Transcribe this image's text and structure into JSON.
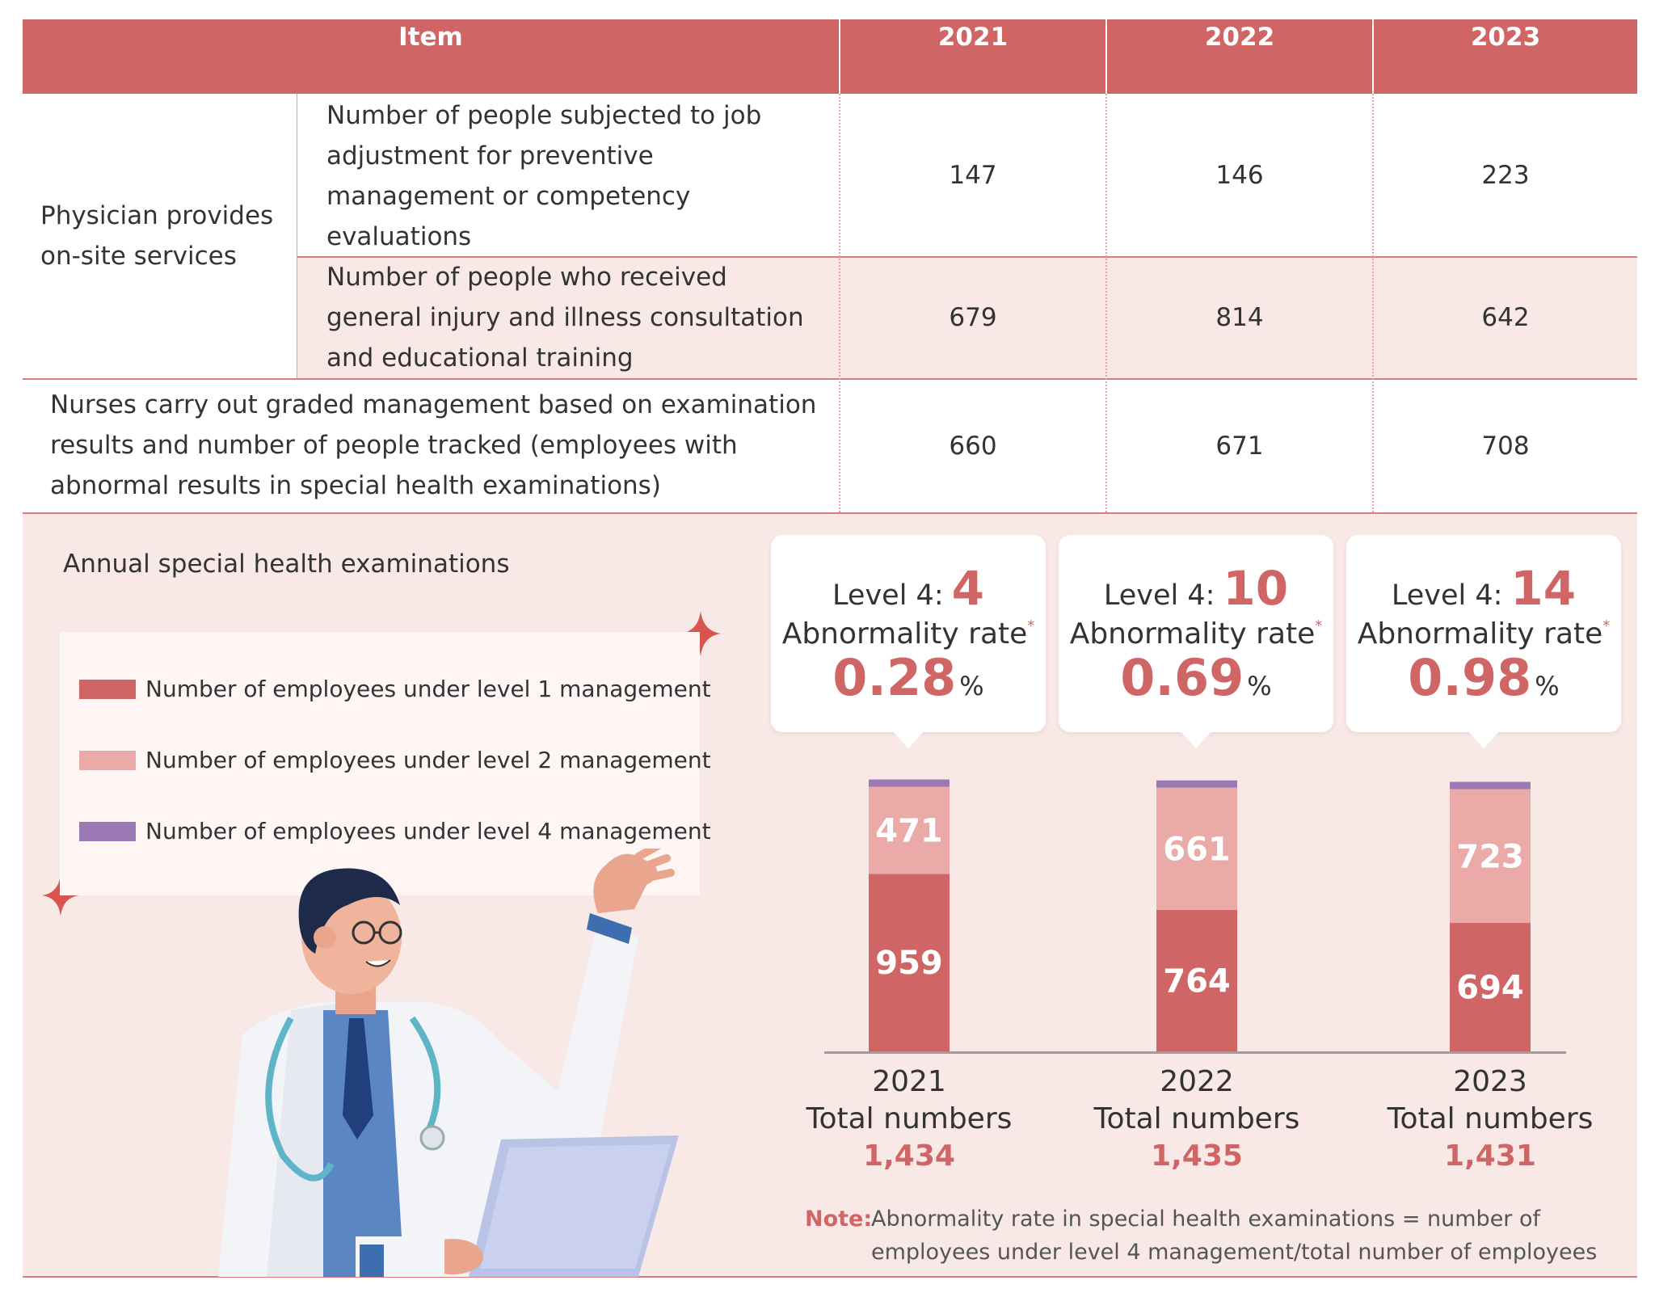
{
  "table": {
    "header": {
      "item": "Item",
      "years": [
        "2021",
        "2022",
        "2023"
      ]
    },
    "group_label": "Physician provides on-site services",
    "rows": [
      {
        "label": "Number of people subjected to job adjustment for preventive management or competency evaluations",
        "values": [
          "147",
          "146",
          "223"
        ]
      },
      {
        "label": "Number of people who received general injury and illness consultation and educational training",
        "values": [
          "679",
          "814",
          "642"
        ]
      },
      {
        "label": "Nurses carry out graded management based on examination results and number of people tracked (employees with abnormal results in special health examinations)",
        "values": [
          "660",
          "671",
          "708"
        ]
      }
    ]
  },
  "section": {
    "title": "Annual special health examinations",
    "legend": [
      {
        "label": "Number of employees under level 1 management",
        "color": "#cf6565"
      },
      {
        "label": "Number of employees under level 2 management",
        "color": "#eaaaa8"
      },
      {
        "label": "Number of employees under level 4 management",
        "color": "#9b7ab4"
      }
    ],
    "callouts": [
      {
        "level_label": "Level 4:",
        "level_value": "4",
        "rate_label": "Abnormality rate",
        "rate_asterisk": "*",
        "rate_value": "0.28",
        "rate_unit": "%"
      },
      {
        "level_label": "Level 4:",
        "level_value": "10",
        "rate_label": "Abnormality rate",
        "rate_asterisk": "*",
        "rate_value": "0.69",
        "rate_unit": "%"
      },
      {
        "level_label": "Level 4:",
        "level_value": "14",
        "rate_label": "Abnormality rate",
        "rate_asterisk": "*",
        "rate_value": "0.98",
        "rate_unit": "%"
      }
    ],
    "totals_label": "Total numbers",
    "totals": [
      "1,434",
      "1,435",
      "1,431"
    ],
    "note_key": "Note:",
    "note_text": "Abnormality rate in special health examinations = number of employees under level 4 management/total number of employees"
  },
  "chart_data": {
    "type": "bar",
    "stacked": true,
    "categories": [
      "2021",
      "2022",
      "2023"
    ],
    "series": [
      {
        "name": "Number of employees under level 1 management",
        "values": [
          959,
          764,
          694
        ],
        "color": "#cf6565"
      },
      {
        "name": "Number of employees under level 2 management",
        "values": [
          471,
          661,
          723
        ],
        "color": "#eaaaa8"
      },
      {
        "name": "Number of employees under level 4 management",
        "values": [
          4,
          10,
          14
        ],
        "color": "#9b7ab4"
      }
    ],
    "totals": [
      1434,
      1435,
      1431
    ],
    "title": "Annual special health examinations",
    "xlabel": "",
    "ylabel": "",
    "grid": false,
    "legend": "left"
  }
}
